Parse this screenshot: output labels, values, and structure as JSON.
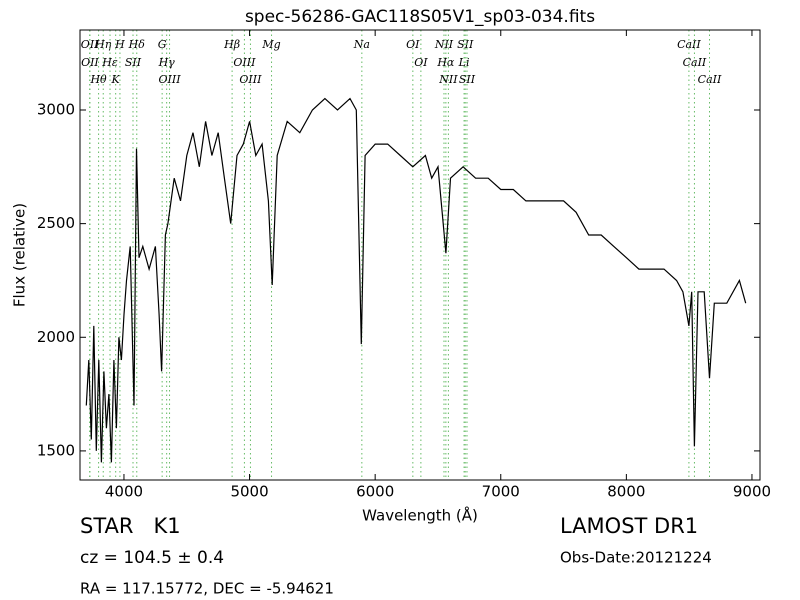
{
  "chart_data": {
    "type": "line",
    "title": "spec-56286-GAC118S05V1_sp03-034.fits",
    "x_label": "Wavelength (Å)",
    "y_label": "Flux (relative)",
    "color": "#000000",
    "line_color": "#66bb66",
    "xlim": [
      3650,
      9064
    ],
    "ylim": [
      1372,
      3352
    ],
    "xticks": [
      4000,
      5000,
      6000,
      7000,
      8000,
      9000
    ],
    "yticks": [
      1500,
      2000,
      2500,
      3000
    ],
    "x": [
      3700,
      3720,
      3740,
      3760,
      3780,
      3800,
      3820,
      3840,
      3860,
      3880,
      3900,
      3920,
      3940,
      3960,
      3980,
      4000,
      4020,
      4050,
      4080,
      4100,
      4120,
      4150,
      4200,
      4250,
      4280,
      4300,
      4330,
      4350,
      4400,
      4450,
      4500,
      4550,
      4600,
      4650,
      4700,
      4750,
      4800,
      4850,
      4900,
      4950,
      5000,
      5050,
      5100,
      5150,
      5180,
      5220,
      5300,
      5400,
      5500,
      5600,
      5700,
      5800,
      5850,
      5890,
      5920,
      6000,
      6100,
      6200,
      6300,
      6400,
      6450,
      6500,
      6563,
      6600,
      6700,
      6800,
      6900,
      7000,
      7100,
      7200,
      7300,
      7400,
      7500,
      7600,
      7700,
      7800,
      7900,
      8000,
      8100,
      8200,
      8300,
      8400,
      8450,
      8498,
      8520,
      8542,
      8570,
      8620,
      8662,
      8700,
      8800,
      8900,
      8950
    ],
    "values": [
      1700,
      1900,
      1550,
      2050,
      1500,
      1900,
      1450,
      1850,
      1600,
      1750,
      1450,
      1900,
      1600,
      2000,
      1900,
      2100,
      2250,
      2400,
      1700,
      2830,
      2350,
      2400,
      2300,
      2400,
      2100,
      1850,
      2450,
      2500,
      2700,
      2600,
      2800,
      2900,
      2750,
      2950,
      2800,
      2900,
      2700,
      2500,
      2800,
      2850,
      2950,
      2800,
      2850,
      2600,
      2230,
      2800,
      2950,
      2900,
      3000,
      3050,
      3000,
      3050,
      3000,
      1970,
      2800,
      2850,
      2850,
      2800,
      2750,
      2800,
      2700,
      2750,
      2370,
      2700,
      2750,
      2700,
      2700,
      2650,
      2650,
      2600,
      2600,
      2600,
      2600,
      2550,
      2450,
      2450,
      2400,
      2350,
      2300,
      2300,
      2300,
      2250,
      2200,
      2050,
      2200,
      1520,
      2200,
      2200,
      1820,
      2150,
      2150,
      2250,
      2150
    ],
    "spectral_lines": [
      {
        "label": "OII",
        "wavelength": 3727
      },
      {
        "label": "OII",
        "wavelength": 3729
      },
      {
        "label": "Hθ",
        "wavelength": 3798
      },
      {
        "label": "Hη",
        "wavelength": 3835
      },
      {
        "label": "Hε",
        "wavelength": 3889
      },
      {
        "label": "K",
        "wavelength": 3934
      },
      {
        "label": "H",
        "wavelength": 3968
      },
      {
        "label": "SII",
        "wavelength": 4072
      },
      {
        "label": "Hδ",
        "wavelength": 4102
      },
      {
        "label": "G",
        "wavelength": 4304
      },
      {
        "label": "Hγ",
        "wavelength": 4340
      },
      {
        "label": "OIII",
        "wavelength": 4363
      },
      {
        "label": "Hβ",
        "wavelength": 4861
      },
      {
        "label": "OIII",
        "wavelength": 4959
      },
      {
        "label": "OIII",
        "wavelength": 5007
      },
      {
        "label": "Mg",
        "wavelength": 5175
      },
      {
        "label": "Na",
        "wavelength": 5894
      },
      {
        "label": "OI",
        "wavelength": 6300
      },
      {
        "label": "OI",
        "wavelength": 6364
      },
      {
        "label": "NII",
        "wavelength": 6548
      },
      {
        "label": "Hα",
        "wavelength": 6563
      },
      {
        "label": "NII",
        "wavelength": 6583
      },
      {
        "label": "Li",
        "wavelength": 6708
      },
      {
        "label": "SII",
        "wavelength": 6717
      },
      {
        "label": "SII",
        "wavelength": 6731
      },
      {
        "label": "CaII",
        "wavelength": 8498
      },
      {
        "label": "CaII",
        "wavelength": 8542
      },
      {
        "label": "CaII",
        "wavelength": 8662
      }
    ],
    "object_class": "STAR   K1",
    "redshift": "cz = 104.5 ± 0.4",
    "coordinates": "RA = 117.15772, DEC = -5.94621",
    "survey": "LAMOST DR1",
    "obs_date": "Obs-Date:20121224"
  }
}
